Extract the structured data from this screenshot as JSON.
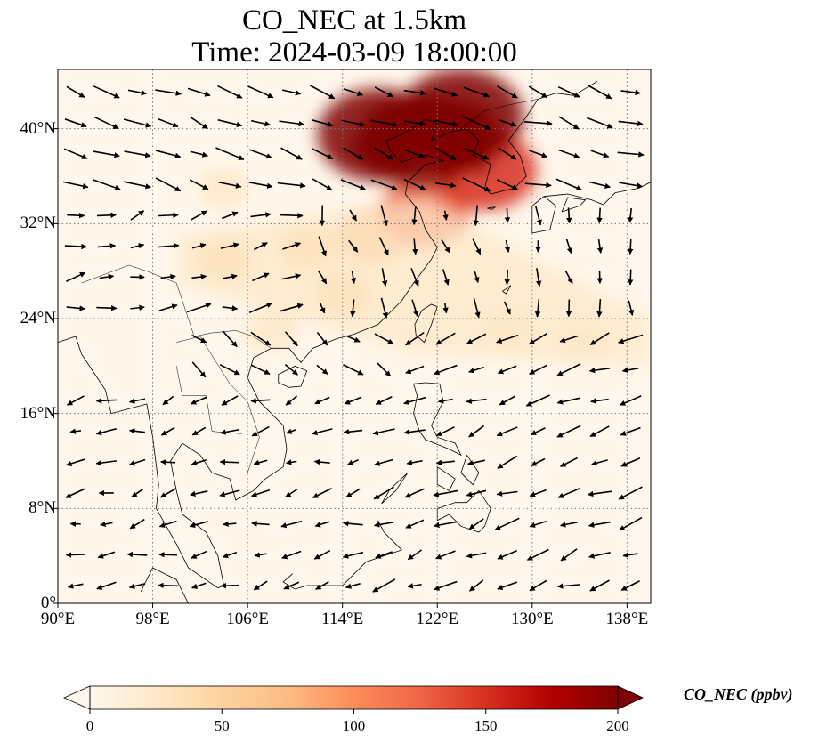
{
  "title_line1": "CO_NEC at 1.5km",
  "title_line2": "Time: 2024-03-09 18:00:00",
  "map": {
    "projection": "PlateCarree",
    "lon_range": [
      90,
      140
    ],
    "lat_range": [
      0,
      45
    ],
    "gridlines": "dotted",
    "coastlines": true,
    "country_borders": true
  },
  "x_ticks": [
    "90°E",
    "98°E",
    "106°E",
    "114°E",
    "122°E",
    "130°E",
    "138°E"
  ],
  "y_ticks": [
    "0°",
    "8°N",
    "16°N",
    "24°N",
    "32°N",
    "40°N"
  ],
  "colorbar": {
    "label": "CO_NEC (ppbv)",
    "ticks": [
      "0",
      "50",
      "100",
      "150",
      "200"
    ],
    "range": [
      0,
      200
    ],
    "colormap": "OrRd",
    "extend": "both",
    "colors": [
      "#fff7ec",
      "#fee8c8",
      "#fdd49e",
      "#fdbb84",
      "#fc8d59",
      "#ef6548",
      "#d7301f",
      "#b30000",
      "#7f0000"
    ]
  },
  "field": {
    "description_free": true,
    "hotspots": [
      {
        "lon": 120.5,
        "lat": 39.0,
        "value": 200
      },
      {
        "lon": 124.0,
        "lat": 41.0,
        "value": 200
      },
      {
        "lon": 117.0,
        "lat": 39.5,
        "value": 190
      },
      {
        "lon": 126.0,
        "lat": 36.5,
        "value": 150
      },
      {
        "lon": 121.0,
        "lat": 33.0,
        "value": 120
      },
      {
        "lon": 116.5,
        "lat": 31.0,
        "value": 80
      },
      {
        "lon": 111.0,
        "lat": 30.0,
        "value": 45
      },
      {
        "lon": 104.0,
        "lat": 29.0,
        "value": 40
      },
      {
        "lon": 114.0,
        "lat": 26.0,
        "value": 45
      },
      {
        "lon": 108.0,
        "lat": 23.0,
        "value": 30
      },
      {
        "lon": 128.0,
        "lat": 23.0,
        "value": 30
      },
      {
        "lon": 134.0,
        "lat": 22.0,
        "value": 25
      },
      {
        "lon": 104.0,
        "lat": 35.0,
        "value": 25
      }
    ]
  },
  "wind_regimes": [
    {
      "lat_min": 34,
      "lat_max": 45,
      "lon_min": 90,
      "lon_max": 140,
      "u": 6,
      "v": -2
    },
    {
      "lat_min": 24,
      "lat_max": 34,
      "lon_min": 90,
      "lon_max": 110,
      "u": 5,
      "v": 1
    },
    {
      "lat_min": 24,
      "lat_max": 34,
      "lon_min": 110,
      "lon_max": 140,
      "u": 1,
      "v": -4
    },
    {
      "lat_min": 18,
      "lat_max": 24,
      "lon_min": 100,
      "lon_max": 120,
      "u": 4,
      "v": -3
    },
    {
      "lat_min": 0,
      "lat_max": 24,
      "lon_min": 115,
      "lon_max": 140,
      "u": -5,
      "v": -2
    },
    {
      "lat_min": 0,
      "lat_max": 18,
      "lon_min": 90,
      "lon_max": 115,
      "u": -4,
      "v": -1
    }
  ]
}
